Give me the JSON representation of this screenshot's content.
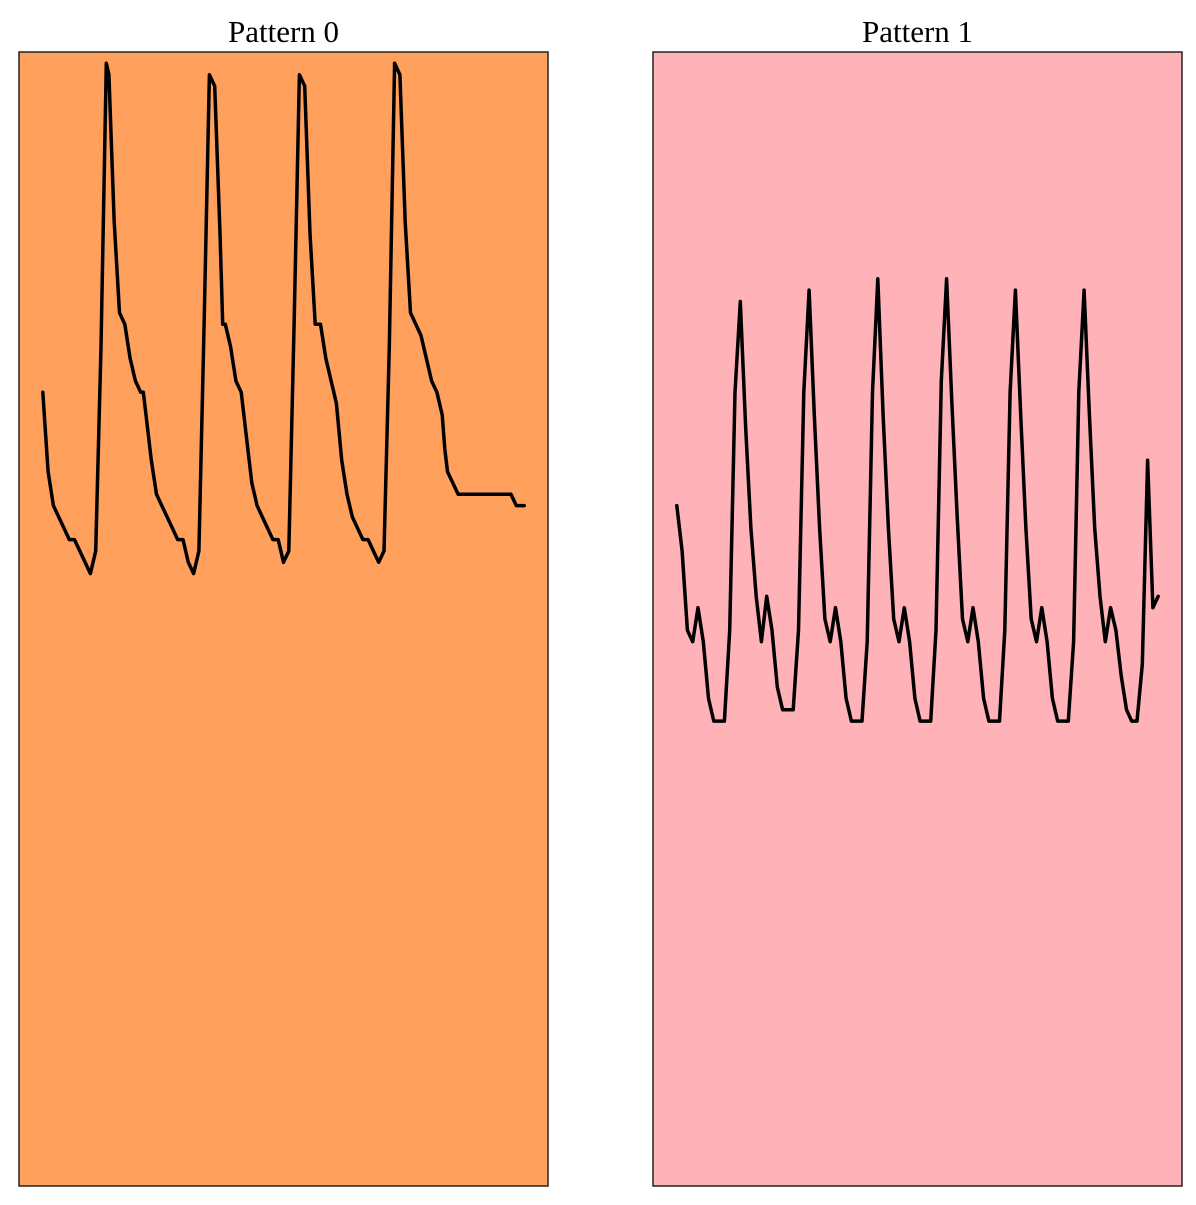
{
  "chart_data": [
    {
      "type": "line",
      "title": "Pattern 0",
      "xlabel": "",
      "ylabel": "",
      "grid": false,
      "legend": "none",
      "background_color": "#ffa05c",
      "line_color": "#000000",
      "xlim": [
        0,
        100
      ],
      "ylim": [
        0,
        100
      ],
      "series": [
        {
          "x": [
            4.5,
            5.5,
            6.5,
            7.5,
            8.5,
            9.5,
            10.5,
            11.5,
            12.5,
            13.5,
            14.5,
            15.5,
            16.5,
            17.0,
            18.0,
            19.0,
            20.0,
            21.0,
            22.0,
            23.0,
            23.5,
            24.0,
            25.0,
            26.0,
            27.0,
            28.0,
            29.0,
            30.0,
            31.0,
            32.0,
            33.0,
            34.0,
            35.0,
            36.0,
            37.0,
            38.0,
            38.5,
            39.0,
            40.0,
            41.0,
            42.0,
            43.0,
            44.0,
            45.0,
            46.0,
            47.0,
            48.0,
            49.0,
            50.0,
            51.0,
            52.0,
            53.0,
            54.0,
            55.0,
            56.0,
            57.0,
            58.0,
            59.0,
            59.5,
            60.0,
            61.0,
            62.0,
            63.0,
            64.0,
            65.0,
            66.0,
            67.0,
            68.0,
            69.0,
            70.0,
            71.0,
            72.0,
            73.0,
            74.0,
            75.0,
            76.0,
            77.0,
            78.0,
            79.0,
            80.0,
            80.5,
            81.0,
            82.0,
            83.0,
            84.0,
            85.0,
            86.0,
            87.0,
            88.0,
            89.0,
            90.0,
            91.0,
            92.0,
            93.0,
            94.0,
            95.0,
            95.5
          ],
          "y": [
            70,
            63,
            60,
            59,
            58,
            57,
            57,
            56,
            55,
            54,
            56,
            74,
            99,
            98,
            85,
            77,
            76,
            73,
            71,
            70,
            70,
            68,
            64,
            61,
            60,
            59,
            58,
            57,
            57,
            55,
            54,
            56,
            76,
            98,
            97,
            84,
            76,
            76,
            74,
            71,
            70,
            66,
            62,
            60,
            59,
            58,
            57,
            57,
            55,
            56,
            76,
            98,
            97,
            84,
            76,
            76,
            73,
            71,
            70,
            69,
            64,
            61,
            59,
            58,
            57,
            57,
            56,
            55,
            56,
            74,
            99,
            98,
            85,
            77,
            76,
            75,
            73,
            71,
            70,
            68,
            65,
            63,
            62,
            61,
            61,
            61,
            61,
            61,
            61,
            61,
            61,
            61,
            61,
            61,
            60,
            60,
            60
          ]
        }
      ]
    },
    {
      "type": "line",
      "title": "Pattern 1",
      "xlabel": "",
      "ylabel": "",
      "grid": false,
      "legend": "none",
      "background_color": "#ffb3b8",
      "line_color": "#000000",
      "xlim": [
        0,
        100
      ],
      "ylim": [
        0,
        100
      ],
      "series": [
        {
          "x": [
            4.5,
            5.5,
            6.5,
            7.5,
            8.5,
            9.5,
            10.5,
            11.5,
            12.5,
            13.5,
            14.5,
            15.5,
            16.5,
            17.5,
            18.5,
            19.5,
            20.5,
            21.5,
            22.5,
            23.5,
            24.5,
            25.5,
            26.5,
            27.5,
            28.5,
            29.5,
            30.5,
            31.5,
            32.5,
            33.5,
            34.5,
            35.5,
            36.5,
            37.5,
            38.5,
            39.5,
            40.5,
            41.5,
            42.5,
            43.5,
            44.5,
            45.5,
            46.5,
            47.5,
            48.5,
            49.5,
            50.5,
            51.5,
            52.5,
            53.5,
            54.5,
            55.5,
            56.5,
            57.5,
            58.5,
            59.5,
            60.5,
            61.5,
            62.5,
            63.5,
            64.5,
            65.5,
            66.5,
            67.5,
            68.5,
            69.5,
            70.5,
            71.5,
            72.5,
            73.5,
            74.5,
            75.5,
            76.5,
            77.5,
            78.5,
            79.5,
            80.5,
            81.5,
            82.5,
            83.5,
            84.5,
            85.5,
            86.5,
            87.5,
            88.5,
            89.5,
            90.5,
            91.5,
            92.5,
            93.5,
            94.5,
            95.5
          ],
          "y": [
            60,
            56,
            49,
            48,
            51,
            48,
            43,
            41,
            41,
            41,
            49,
            70,
            78,
            67,
            58,
            52,
            48,
            52,
            49,
            44,
            42,
            42,
            42,
            49,
            70,
            79,
            68,
            58,
            50,
            48,
            51,
            48,
            43,
            41,
            41,
            41,
            48,
            70,
            80,
            68,
            58,
            50,
            48,
            51,
            48,
            43,
            41,
            41,
            41,
            49,
            71,
            80,
            69,
            59,
            50,
            48,
            51,
            48,
            43,
            41,
            41,
            41,
            49,
            70,
            79,
            68,
            58,
            50,
            48,
            51,
            48,
            43,
            41,
            41,
            41,
            48,
            70,
            79,
            68,
            58,
            52,
            48,
            51,
            49,
            45,
            42,
            41,
            41,
            46,
            64,
            51,
            52
          ]
        }
      ]
    }
  ]
}
